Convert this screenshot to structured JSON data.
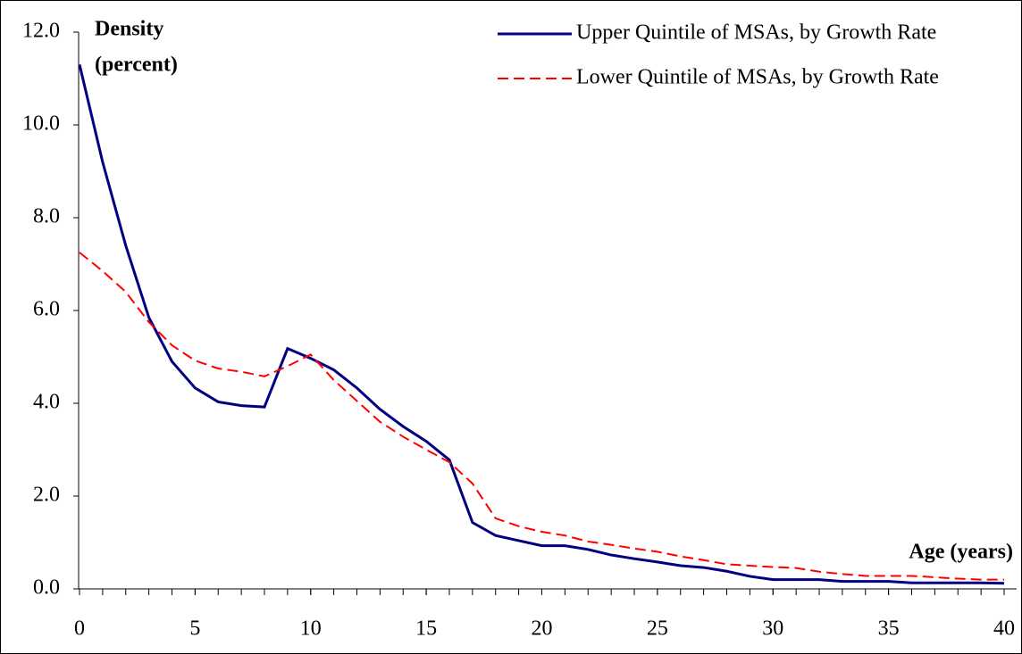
{
  "chart_data": {
    "type": "line",
    "y_label": [
      "Density",
      "(percent)"
    ],
    "x_label": "Age (years)",
    "x": [
      0,
      1,
      2,
      3,
      4,
      5,
      6,
      7,
      8,
      9,
      10,
      11,
      12,
      13,
      14,
      15,
      16,
      17,
      18,
      19,
      20,
      21,
      22,
      23,
      24,
      25,
      26,
      27,
      28,
      29,
      30,
      31,
      32,
      33,
      34,
      35,
      36,
      37,
      38,
      39,
      40
    ],
    "series": [
      {
        "name": "Upper Quintile of MSAs, by Growth Rate",
        "color": "#000080",
        "dash": "solid",
        "values": [
          11.3,
          9.2,
          7.4,
          5.85,
          4.9,
          4.33,
          4.03,
          3.95,
          3.92,
          5.18,
          4.97,
          4.72,
          4.33,
          3.87,
          3.5,
          3.18,
          2.78,
          1.43,
          1.15,
          1.04,
          0.93,
          0.93,
          0.85,
          0.73,
          0.65,
          0.58,
          0.5,
          0.46,
          0.38,
          0.27,
          0.2,
          0.2,
          0.2,
          0.16,
          0.16,
          0.16,
          0.13,
          0.13,
          0.13,
          0.13,
          0.12
        ]
      },
      {
        "name": "Lower Quintile of MSAs, by Growth Rate",
        "color": "#ff0000",
        "dash": "dashed",
        "values": [
          7.25,
          6.85,
          6.4,
          5.75,
          5.25,
          4.92,
          4.75,
          4.68,
          4.58,
          4.8,
          5.05,
          4.5,
          4.05,
          3.6,
          3.28,
          3.0,
          2.73,
          2.27,
          1.52,
          1.35,
          1.23,
          1.15,
          1.02,
          0.95,
          0.87,
          0.8,
          0.7,
          0.62,
          0.53,
          0.5,
          0.47,
          0.45,
          0.37,
          0.32,
          0.28,
          0.28,
          0.28,
          0.25,
          0.22,
          0.2,
          0.2
        ]
      }
    ],
    "xlim": [
      0,
      40
    ],
    "xticks": [
      0,
      5,
      10,
      15,
      20,
      25,
      30,
      35,
      40
    ],
    "ylim": [
      0,
      12
    ],
    "yticks": [
      {
        "value": 0,
        "label": "0.0"
      },
      {
        "value": 2,
        "label": "2.0"
      },
      {
        "value": 4,
        "label": "4.0"
      },
      {
        "value": 6,
        "label": "6.0"
      },
      {
        "value": 8,
        "label": "8.0"
      },
      {
        "value": 10,
        "label": "10.0"
      },
      {
        "value": 12,
        "label": "12.0"
      }
    ],
    "grid": false,
    "legend": "top-right"
  }
}
